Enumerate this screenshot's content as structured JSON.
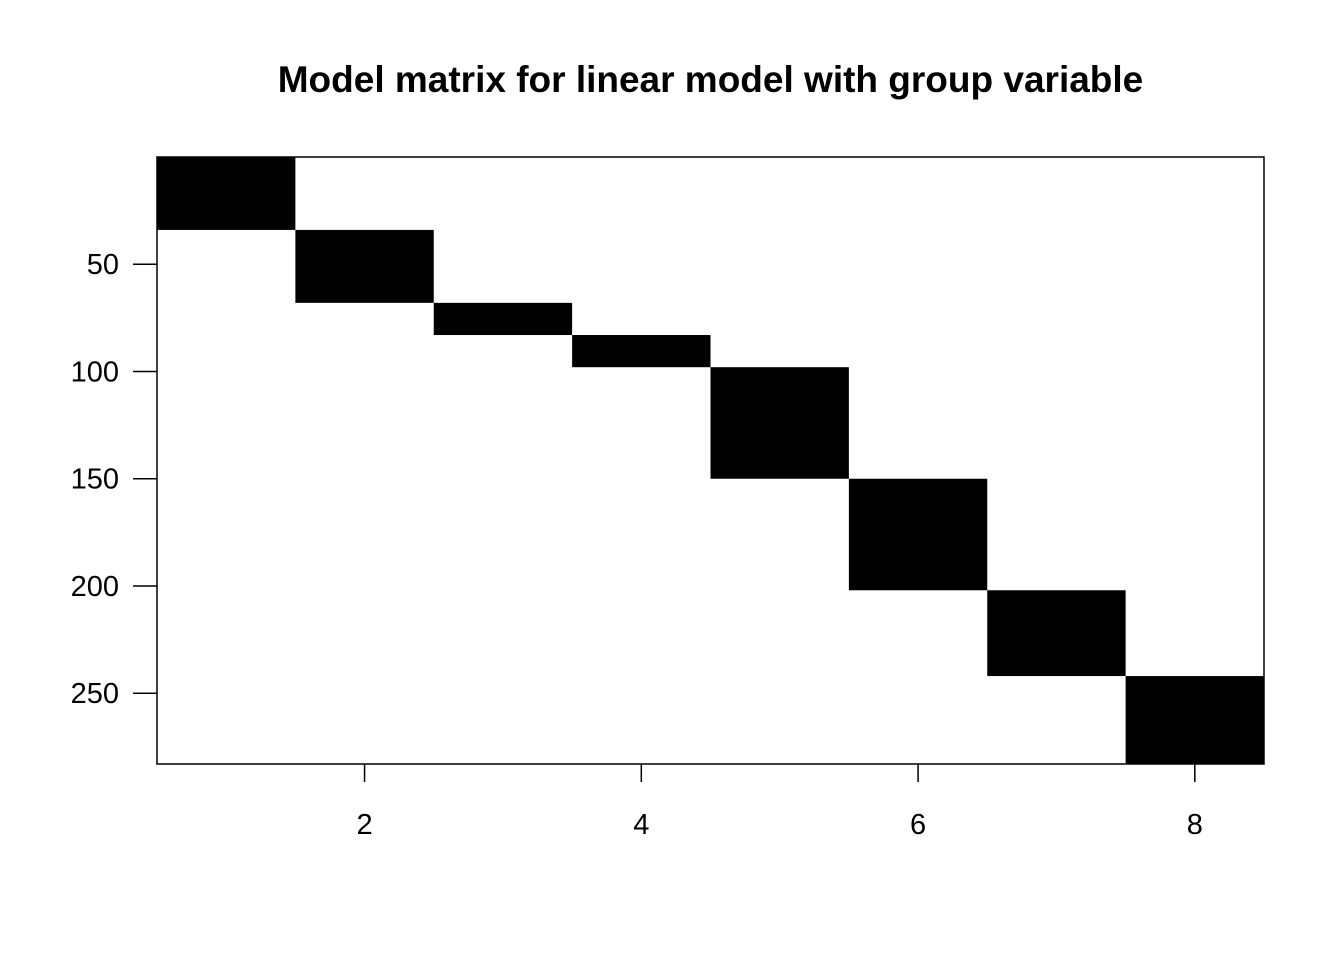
{
  "chart_data": {
    "type": "heatmap",
    "title": "Model matrix for linear model with group variable",
    "xlabel": "",
    "ylabel": "",
    "x_ticks": [
      2,
      4,
      6,
      8
    ],
    "y_ticks": [
      50,
      100,
      150,
      200,
      250
    ],
    "xlim": [
      0.5,
      8.5
    ],
    "ylim": [
      283,
      0
    ],
    "y_axis_reversed": true,
    "grid": false,
    "legend": "none",
    "colors": {
      "filled": "#000000",
      "empty": "#ffffff"
    },
    "blocks": [
      {
        "column": 1,
        "row_start": 1,
        "row_end": 34
      },
      {
        "column": 2,
        "row_start": 35,
        "row_end": 68
      },
      {
        "column": 3,
        "row_start": 69,
        "row_end": 83
      },
      {
        "column": 4,
        "row_start": 84,
        "row_end": 98
      },
      {
        "column": 5,
        "row_start": 99,
        "row_end": 150
      },
      {
        "column": 6,
        "row_start": 151,
        "row_end": 202
      },
      {
        "column": 7,
        "row_start": 203,
        "row_end": 242
      },
      {
        "column": 8,
        "row_start": 243,
        "row_end": 283
      }
    ]
  }
}
